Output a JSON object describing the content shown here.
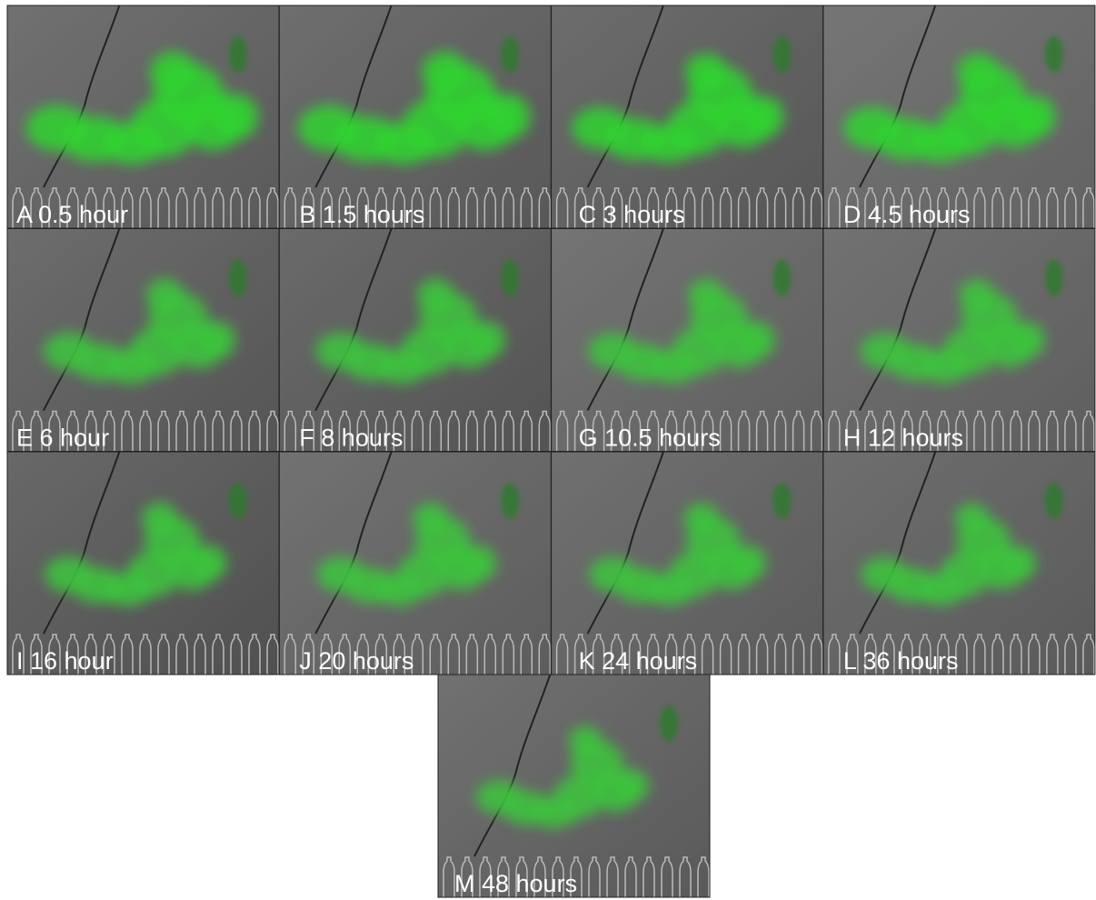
{
  "panels": [
    "A 0.5 hour",
    "B 1.5 hours",
    "C 3 hours",
    "D 4.5 hours",
    "E 6 hour",
    "F 8 hours",
    "G 10.5 hours",
    "H 12 hours",
    "I 16 hour",
    "J 20 hours",
    "K 24 hours",
    "L 36 hours",
    "M 48 hours"
  ]
}
